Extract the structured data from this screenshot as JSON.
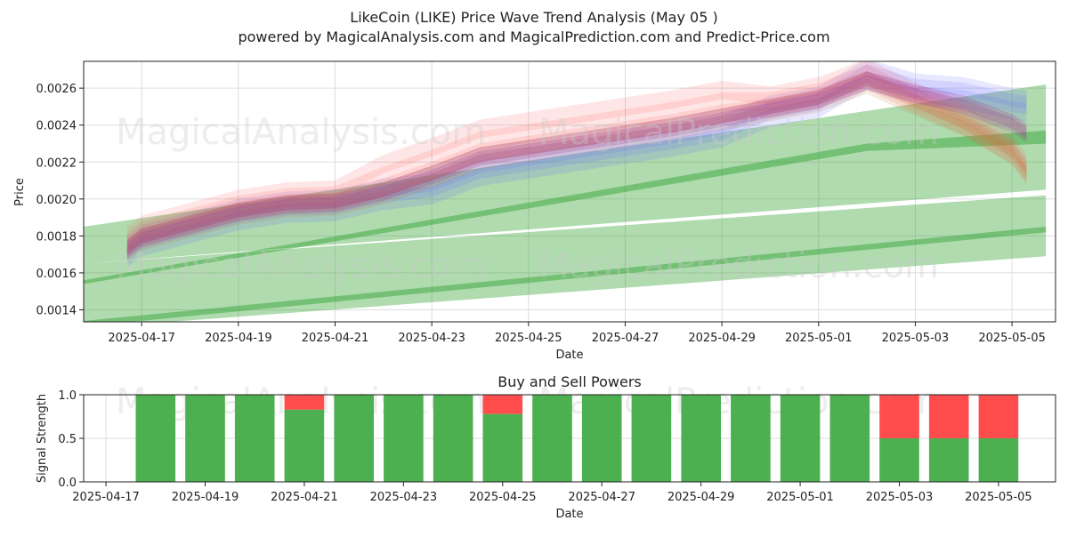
{
  "title_line1": "LikeCoin (LIKE) Price Wave Trend Analysis (May 05 )",
  "title_line2": "powered by MagicalAnalysis.com and MagicalPrediction.com and Predict-Price.com",
  "watermarks": [
    "MagicalAnalysis.com",
    "MagicalPrediction.com"
  ],
  "colors": {
    "green_band": "#2ca02c",
    "blue_band": "#6b6bff",
    "red_band": "#ff4d4d",
    "purple_band": "#a03c8c",
    "orange_band": "#c87832",
    "buy": "#4caf50",
    "sell": "#ff4d4d"
  },
  "chart_data": [
    {
      "type": "area",
      "title": "",
      "xlabel": "Date",
      "ylabel": "Price",
      "x_ticks": [
        "2025-04-17",
        "2025-04-19",
        "2025-04-21",
        "2025-04-23",
        "2025-04-25",
        "2025-04-27",
        "2025-04-29",
        "2025-05-01",
        "2025-05-03",
        "2025-05-05"
      ],
      "y_ticks": [
        "0.0014",
        "0.0016",
        "0.0018",
        "0.0020",
        "0.0022",
        "0.0024",
        "0.0026"
      ],
      "xlim": [
        "2025-04-15.8",
        "2025-05-05.9"
      ],
      "ylim": [
        0.001335,
        0.002745
      ],
      "grid": true,
      "price_series": {
        "x": [
          "2025-04-16.7",
          "2025-04-17",
          "2025-04-18",
          "2025-04-19",
          "2025-04-20",
          "2025-04-21",
          "2025-04-22",
          "2025-04-23",
          "2025-04-24",
          "2025-04-25",
          "2025-04-26",
          "2025-04-27",
          "2025-04-28",
          "2025-04-29",
          "2025-04-30",
          "2025-05-01",
          "2025-05-02",
          "2025-05-03",
          "2025-05-04",
          "2025-05-05",
          "2025-05-05.3"
        ],
        "values": [
          0.00172,
          0.00178,
          0.00185,
          0.00192,
          0.00196,
          0.00197,
          0.00203,
          0.00212,
          0.00222,
          0.00226,
          0.0023,
          0.00234,
          0.00238,
          0.00243,
          0.00248,
          0.00253,
          0.00263,
          0.00256,
          0.0025,
          0.0024,
          0.00235
        ]
      },
      "green_bands": [
        {
          "x": [
            "2025-04-15.8",
            "2025-05-05.7"
          ],
          "lower": [
            0.00165,
            0.00205
          ],
          "upper": [
            0.00185,
            0.00262
          ]
        },
        {
          "x": [
            "2025-04-15.8",
            "2025-05-02",
            "2025-05-05.7"
          ],
          "lower": [
            0.00154,
            0.00226,
            0.0023
          ],
          "upper": [
            0.00156,
            0.0023,
            0.00237
          ]
        },
        {
          "x": [
            "2025-04-15.8",
            "2025-05-05.7"
          ],
          "lower": [
            0.0013,
            0.00169
          ],
          "upper": [
            0.00165,
            0.00202
          ]
        },
        {
          "x": [
            "2025-04-15.8",
            "2025-05-05.7"
          ],
          "lower": [
            0.00131,
            0.00182
          ],
          "upper": [
            0.00134,
            0.00185
          ]
        }
      ]
    },
    {
      "type": "bar",
      "title": "Buy and Sell Powers",
      "xlabel": "Date",
      "ylabel": "Signal Strength",
      "x_ticks": [
        "2025-04-17",
        "2025-04-19",
        "2025-04-21",
        "2025-04-23",
        "2025-04-25",
        "2025-04-27",
        "2025-04-29",
        "2025-05-01",
        "2025-05-03",
        "2025-05-05"
      ],
      "y_ticks": [
        "0.0",
        "0.5",
        "1.0"
      ],
      "ylim": [
        0,
        1
      ],
      "categories": [
        "2025-04-18",
        "2025-04-19",
        "2025-04-20",
        "2025-04-21",
        "2025-04-22",
        "2025-04-23",
        "2025-04-24",
        "2025-04-25",
        "2025-04-26",
        "2025-04-27",
        "2025-04-28",
        "2025-04-29",
        "2025-04-30",
        "2025-05-01",
        "2025-05-02",
        "2025-05-03",
        "2025-05-04",
        "2025-05-05"
      ],
      "series": [
        {
          "name": "buy",
          "values": [
            1,
            1,
            1,
            0.83,
            1,
            1,
            1,
            0.78,
            1,
            1,
            1,
            1,
            1,
            1,
            1,
            0.5,
            0.5,
            0.5
          ]
        },
        {
          "name": "sell",
          "values": [
            0,
            0,
            0,
            0.17,
            0,
            0,
            0,
            0.22,
            0,
            0,
            0,
            0,
            0,
            0,
            0,
            0.5,
            0.5,
            0.5
          ]
        }
      ]
    }
  ]
}
